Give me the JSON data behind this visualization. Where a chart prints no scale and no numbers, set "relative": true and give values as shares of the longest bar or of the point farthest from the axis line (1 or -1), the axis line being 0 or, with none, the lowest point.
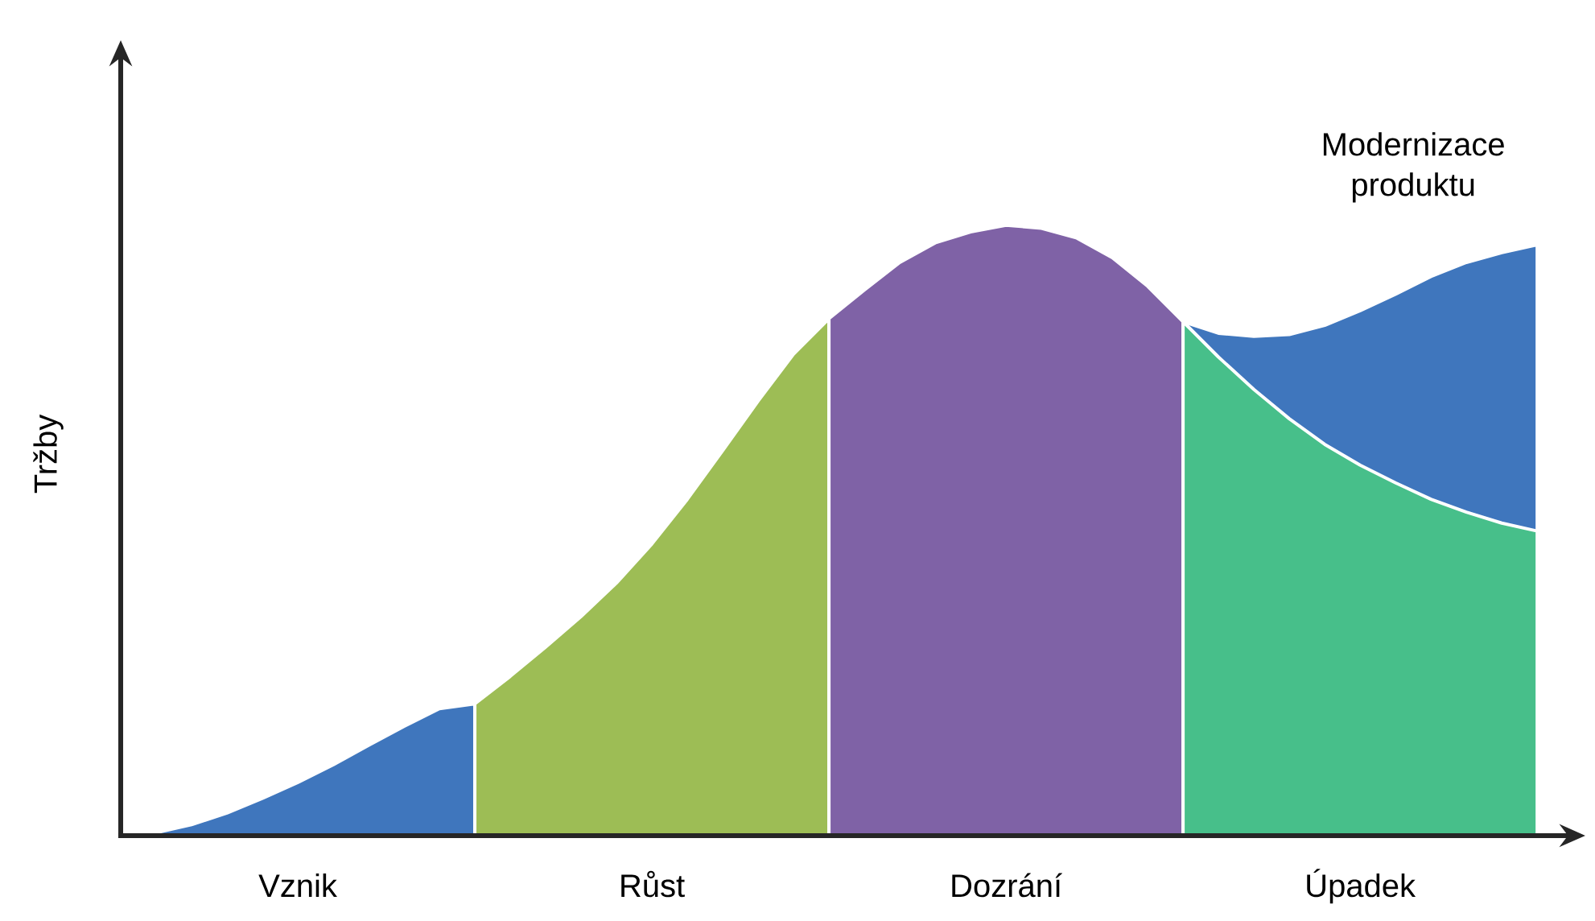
{
  "chart_data": {
    "type": "area",
    "relative": true,
    "ylabel": "Tržby",
    "categories": [
      null,
      null,
      null,
      null,
      null,
      null,
      null,
      null,
      null,
      null,
      null,
      null,
      null,
      null,
      null,
      null,
      null,
      null,
      null,
      null,
      null,
      null,
      null,
      null,
      null,
      null,
      null,
      null,
      null,
      null,
      null,
      null,
      null,
      null,
      null,
      null,
      null,
      null,
      null,
      null,
      null
    ],
    "series": [
      {
        "name": "Modernizace produktu",
        "color": "#3f76bd",
        "values": [
          null,
          null,
          null,
          null,
          null,
          null,
          null,
          null,
          null,
          null,
          null,
          null,
          null,
          null,
          null,
          null,
          null,
          null,
          null,
          null,
          null,
          null,
          null,
          null,
          null,
          null,
          null,
          null,
          null,
          null,
          0.842,
          0.823,
          0.818,
          0.821,
          0.836,
          0.86,
          0.887,
          0.916,
          0.939,
          0.955,
          0.968
        ]
      },
      {
        "name": "Vznik",
        "color": "#3f76bd",
        "values": [
          0,
          0.005,
          0.018,
          0.037,
          0.061,
          0.087,
          0.116,
          0.148,
          0.179,
          0.208,
          0.216,
          null,
          null,
          null,
          null,
          null,
          null,
          null,
          null,
          null,
          null,
          null,
          null,
          null,
          null,
          null,
          null,
          null,
          null,
          null,
          null,
          null,
          null,
          null,
          null,
          null,
          null,
          null,
          null,
          null,
          null
        ]
      },
      {
        "name": "Růst",
        "color": "#9dbd55",
        "values": [
          null,
          null,
          null,
          null,
          null,
          null,
          null,
          null,
          null,
          null,
          0.216,
          0.261,
          0.309,
          0.359,
          0.414,
          0.478,
          0.551,
          0.631,
          0.712,
          0.789,
          0.847,
          null,
          null,
          null,
          null,
          null,
          null,
          null,
          null,
          null,
          null,
          null,
          null,
          null,
          null,
          null,
          null,
          null,
          null,
          null,
          null
        ]
      },
      {
        "name": "Dozrání",
        "color": "#7f62a6",
        "values": [
          null,
          null,
          null,
          null,
          null,
          null,
          null,
          null,
          null,
          null,
          null,
          null,
          null,
          null,
          null,
          null,
          null,
          null,
          null,
          null,
          0.847,
          0.894,
          0.939,
          0.971,
          0.989,
          1,
          0.995,
          0.979,
          0.947,
          0.9,
          0.842,
          null,
          null,
          null,
          null,
          null,
          null,
          null,
          null,
          null,
          null
        ]
      },
      {
        "name": "Úpadek",
        "color": "#47bf8a",
        "values": [
          null,
          null,
          null,
          null,
          null,
          null,
          null,
          null,
          null,
          null,
          null,
          null,
          null,
          null,
          null,
          null,
          null,
          null,
          null,
          null,
          null,
          null,
          null,
          null,
          null,
          null,
          null,
          null,
          null,
          null,
          0.842,
          0.784,
          0.731,
          0.683,
          0.641,
          0.607,
          0.578,
          0.551,
          0.53,
          0.512,
          0.499
        ]
      }
    ]
  }
}
